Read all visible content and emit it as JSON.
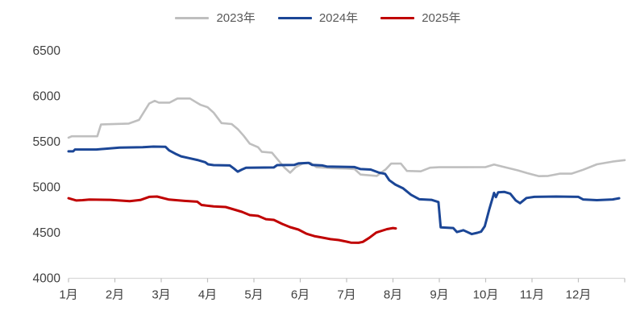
{
  "chart_data": {
    "type": "line",
    "title": "",
    "legend": {
      "position": "top",
      "entries": [
        "2023年",
        "2024年",
        "2025年"
      ]
    },
    "grid": false,
    "x_axis": {
      "labels": [
        "1月",
        "2月",
        "3月",
        "4月",
        "5月",
        "6月",
        "7月",
        "8月",
        "9月",
        "10月",
        "11月",
        "12月"
      ],
      "range_months": [
        1,
        13
      ],
      "tick_color": "#bfbfbf",
      "axis_line_color": "#d9d9d9"
    },
    "y_axis": {
      "min": 4000,
      "max": 6500,
      "step": 500,
      "tick_labels": [
        "4000",
        "4500",
        "5000",
        "5500",
        "6000",
        "6500"
      ]
    },
    "series": [
      {
        "name": "2023年",
        "color": "#bfbfbf",
        "stroke_width": 2.6,
        "points": [
          [
            1.0,
            5545
          ],
          [
            1.07,
            5560
          ],
          [
            1.62,
            5560
          ],
          [
            1.7,
            5690
          ],
          [
            2.3,
            5700
          ],
          [
            2.52,
            5740
          ],
          [
            2.74,
            5920
          ],
          [
            2.86,
            5950
          ],
          [
            2.95,
            5930
          ],
          [
            3.18,
            5930
          ],
          [
            3.35,
            5975
          ],
          [
            3.62,
            5975
          ],
          [
            3.75,
            5935
          ],
          [
            3.85,
            5905
          ],
          [
            4.0,
            5880
          ],
          [
            4.13,
            5820
          ],
          [
            4.3,
            5705
          ],
          [
            4.52,
            5695
          ],
          [
            4.65,
            5640
          ],
          [
            4.78,
            5565
          ],
          [
            4.91,
            5480
          ],
          [
            5.09,
            5440
          ],
          [
            5.17,
            5390
          ],
          [
            5.39,
            5380
          ],
          [
            5.52,
            5300
          ],
          [
            5.65,
            5220
          ],
          [
            5.78,
            5160
          ],
          [
            5.9,
            5220
          ],
          [
            6.05,
            5260
          ],
          [
            6.22,
            5270
          ],
          [
            6.35,
            5220
          ],
          [
            6.7,
            5210
          ],
          [
            7.0,
            5205
          ],
          [
            7.17,
            5200
          ],
          [
            7.3,
            5140
          ],
          [
            7.65,
            5125
          ],
          [
            7.85,
            5200
          ],
          [
            7.96,
            5260
          ],
          [
            8.17,
            5260
          ],
          [
            8.3,
            5180
          ],
          [
            8.6,
            5175
          ],
          [
            8.8,
            5215
          ],
          [
            9.0,
            5220
          ],
          [
            9.5,
            5220
          ],
          [
            10.0,
            5222
          ],
          [
            10.18,
            5250
          ],
          [
            10.4,
            5222
          ],
          [
            10.7,
            5185
          ],
          [
            10.9,
            5155
          ],
          [
            11.15,
            5122
          ],
          [
            11.35,
            5125
          ],
          [
            11.6,
            5150
          ],
          [
            11.85,
            5150
          ],
          [
            12.1,
            5192
          ],
          [
            12.4,
            5252
          ],
          [
            12.74,
            5282
          ],
          [
            13.0,
            5298
          ]
        ]
      },
      {
        "name": "2024年",
        "color": "#1b4696",
        "stroke_width": 3,
        "points": [
          [
            1.0,
            5395
          ],
          [
            1.1,
            5395
          ],
          [
            1.14,
            5415
          ],
          [
            1.6,
            5415
          ],
          [
            2.1,
            5435
          ],
          [
            2.6,
            5440
          ],
          [
            2.83,
            5447
          ],
          [
            3.09,
            5445
          ],
          [
            3.17,
            5405
          ],
          [
            3.3,
            5370
          ],
          [
            3.43,
            5340
          ],
          [
            3.6,
            5320
          ],
          [
            3.78,
            5300
          ],
          [
            3.95,
            5275
          ],
          [
            4.01,
            5252
          ],
          [
            4.13,
            5243
          ],
          [
            4.48,
            5240
          ],
          [
            4.57,
            5205
          ],
          [
            4.65,
            5172
          ],
          [
            4.74,
            5195
          ],
          [
            4.83,
            5215
          ],
          [
            5.43,
            5218
          ],
          [
            5.5,
            5243
          ],
          [
            5.87,
            5245
          ],
          [
            5.96,
            5262
          ],
          [
            6.18,
            5268
          ],
          [
            6.26,
            5245
          ],
          [
            6.48,
            5240
          ],
          [
            6.57,
            5228
          ],
          [
            7.17,
            5222
          ],
          [
            7.3,
            5200
          ],
          [
            7.52,
            5195
          ],
          [
            7.7,
            5160
          ],
          [
            7.83,
            5148
          ],
          [
            7.92,
            5078
          ],
          [
            8.05,
            5030
          ],
          [
            8.22,
            4988
          ],
          [
            8.39,
            4918
          ],
          [
            8.57,
            4868
          ],
          [
            8.83,
            4862
          ],
          [
            8.98,
            4838
          ],
          [
            9.03,
            4560
          ],
          [
            9.3,
            4552
          ],
          [
            9.38,
            4508
          ],
          [
            9.52,
            4528
          ],
          [
            9.7,
            4486
          ],
          [
            9.82,
            4500
          ],
          [
            9.9,
            4512
          ],
          [
            9.98,
            4572
          ],
          [
            10.08,
            4762
          ],
          [
            10.15,
            4882
          ],
          [
            10.18,
            4938
          ],
          [
            10.22,
            4892
          ],
          [
            10.27,
            4945
          ],
          [
            10.4,
            4950
          ],
          [
            10.53,
            4930
          ],
          [
            10.65,
            4855
          ],
          [
            10.74,
            4825
          ],
          [
            10.88,
            4882
          ],
          [
            11.05,
            4895
          ],
          [
            11.52,
            4898
          ],
          [
            12.0,
            4895
          ],
          [
            12.1,
            4866
          ],
          [
            12.4,
            4858
          ],
          [
            12.74,
            4866
          ],
          [
            12.88,
            4880
          ]
        ]
      },
      {
        "name": "2025年",
        "color": "#c00000",
        "stroke_width": 3,
        "points": [
          [
            1.0,
            4880
          ],
          [
            1.17,
            4855
          ],
          [
            1.3,
            4858
          ],
          [
            1.45,
            4865
          ],
          [
            1.9,
            4862
          ],
          [
            2.32,
            4848
          ],
          [
            2.55,
            4860
          ],
          [
            2.74,
            4895
          ],
          [
            2.91,
            4898
          ],
          [
            3.17,
            4865
          ],
          [
            3.5,
            4850
          ],
          [
            3.78,
            4842
          ],
          [
            3.87,
            4805
          ],
          [
            4.13,
            4790
          ],
          [
            4.39,
            4783
          ],
          [
            4.74,
            4730
          ],
          [
            4.91,
            4695
          ],
          [
            5.09,
            4686
          ],
          [
            5.26,
            4650
          ],
          [
            5.43,
            4642
          ],
          [
            5.61,
            4597
          ],
          [
            5.78,
            4562
          ],
          [
            5.96,
            4535
          ],
          [
            6.13,
            4490
          ],
          [
            6.3,
            4464
          ],
          [
            6.48,
            4447
          ],
          [
            6.65,
            4430
          ],
          [
            6.83,
            4420
          ],
          [
            7.0,
            4403
          ],
          [
            7.09,
            4392
          ],
          [
            7.26,
            4390
          ],
          [
            7.35,
            4400
          ],
          [
            7.49,
            4445
          ],
          [
            7.64,
            4503
          ],
          [
            7.87,
            4540
          ],
          [
            8.0,
            4552
          ],
          [
            8.06,
            4548
          ]
        ]
      }
    ]
  },
  "colors": {
    "background": "#ffffff",
    "axis_label_text": "#404040",
    "legend_text": "#595959",
    "axis_line": "#d9d9d9",
    "tick": "#bfbfbf"
  }
}
